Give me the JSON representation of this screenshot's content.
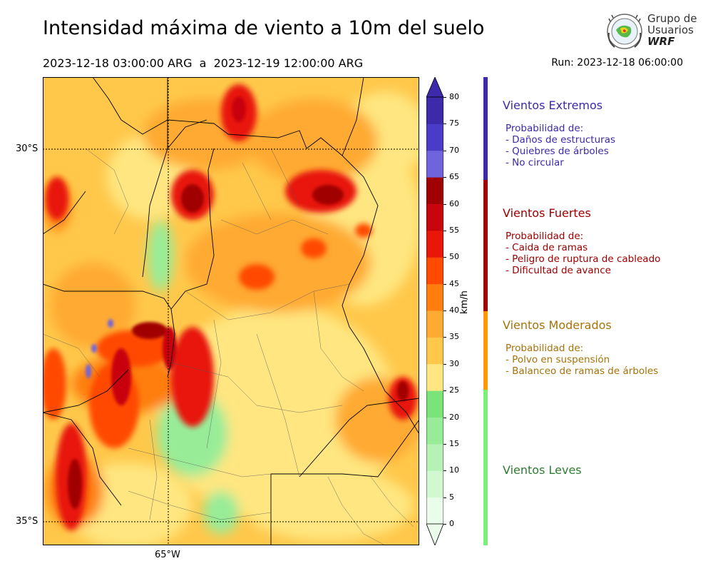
{
  "header": {
    "title": "Intensidad máxima de viento a 10m del suelo",
    "period": "2023-12-18 03:00:00 ARG  a  2023-12-19 12:00:00 ARG",
    "run": "Run: 2023-12-18 06:00:00"
  },
  "logo": {
    "line1": "Grupo de",
    "line2": "Usuarios",
    "line3": "WRF"
  },
  "map": {
    "lat_labels": [
      "30°S",
      "35°S"
    ],
    "lon_labels": [
      "65°W"
    ],
    "gridlines": "dotted"
  },
  "colorbar": {
    "unit": "km/h",
    "ticks": [
      "0",
      "5",
      "10",
      "15",
      "20",
      "25",
      "30",
      "35",
      "40",
      "45",
      "50",
      "55",
      "60",
      "65",
      "70",
      "75",
      "80"
    ],
    "colors": [
      "#eafcea",
      "#d2f8d2",
      "#b6f2b6",
      "#98ec98",
      "#7ae47a",
      "#ffe680",
      "#ffc84b",
      "#ffaa32",
      "#ff7e0f",
      "#ff4a00",
      "#e8170a",
      "#c8050c",
      "#a00000",
      "#6f64dc",
      "#4b3cc8",
      "#3c2aaa"
    ],
    "min": 0,
    "max": 80,
    "extend": "both"
  },
  "categories": [
    {
      "title": "Vientos Extremos",
      "color": "#3c2aaa",
      "lines": [
        "Probabilidad de:",
        "- Daños de estructuras",
        "- Quiebres de árboles",
        "- No circular"
      ]
    },
    {
      "title": "Vientos Fuertes",
      "color": "#a00000",
      "lines": [
        "Probabilidad de:",
        "- Caida de ramas",
        "- Peligro de ruptura de cableado",
        "- Dificultad de avance"
      ]
    },
    {
      "title": "Vientos Moderados",
      "color": "#a8720a",
      "bar_color": "#ff9900",
      "lines": [
        "Probabilidad de:",
        "- Polvo en suspensión",
        "- Balanceo de ramas de árboles"
      ]
    },
    {
      "title": "Vientos Leves",
      "color": "#2e7d32",
      "bar_color": "#7af07a",
      "lines": []
    }
  ]
}
